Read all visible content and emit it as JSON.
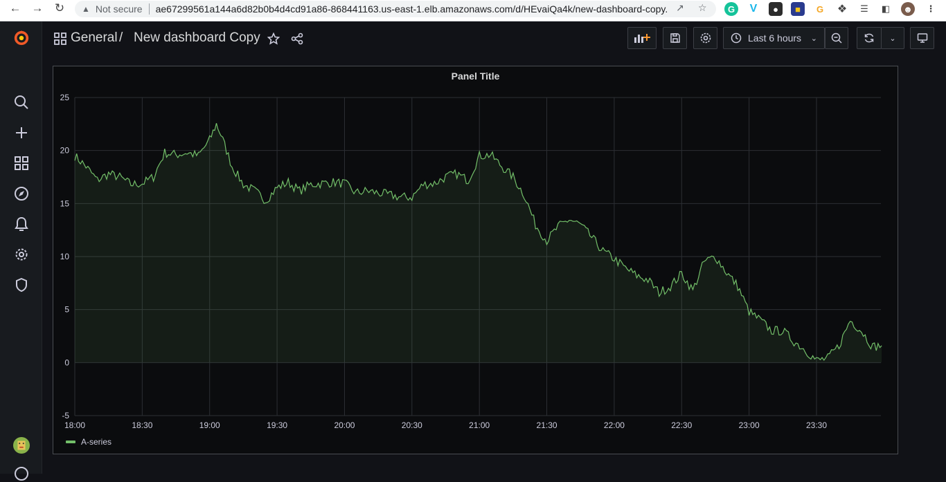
{
  "browser": {
    "security_label": "Not secure",
    "url": "ae67299561a144a6d82b0b4d4cd91a86-868441163.us-east-1.elb.amazonaws.com/d/HEvaiQa4k/new-dashboard-copy..."
  },
  "breadcrumb": {
    "folder": "General",
    "separator": "/",
    "dashboard": "New dashboard Copy"
  },
  "toolbar": {
    "time_range": "Last 6 hours"
  },
  "panel": {
    "title": "Panel Title",
    "legend": "A-series"
  },
  "colors": {
    "series_line": "#73bf69",
    "grafana_orange": "#f05a28"
  },
  "chart_data": {
    "type": "line",
    "title": "Panel Title",
    "x_ticks": [
      "18:00",
      "18:30",
      "19:00",
      "19:30",
      "20:00",
      "20:30",
      "21:00",
      "21:30",
      "22:00",
      "22:30",
      "23:00",
      "23:30"
    ],
    "y_ticks": [
      "-5",
      "0",
      "5",
      "10",
      "15",
      "20",
      "25"
    ],
    "ylim": [
      -5,
      25
    ],
    "xlim": [
      "18:00",
      "23:59"
    ],
    "grid": true,
    "legend_position": "bottom-left",
    "series": [
      {
        "name": "A-series",
        "x": [
          "18:00",
          "18:05",
          "18:10",
          "18:15",
          "18:20",
          "18:25",
          "18:30",
          "18:35",
          "18:40",
          "18:45",
          "18:50",
          "18:55",
          "19:00",
          "19:03",
          "19:05",
          "19:10",
          "19:15",
          "19:20",
          "19:25",
          "19:30",
          "19:35",
          "19:40",
          "19:45",
          "19:50",
          "19:55",
          "20:00",
          "20:05",
          "20:10",
          "20:15",
          "20:20",
          "20:25",
          "20:30",
          "20:35",
          "20:40",
          "20:45",
          "20:50",
          "20:55",
          "21:00",
          "21:05",
          "21:10",
          "21:15",
          "21:20",
          "21:25",
          "21:30",
          "21:35",
          "21:40",
          "21:45",
          "21:50",
          "21:55",
          "22:00",
          "22:05",
          "22:10",
          "22:15",
          "22:20",
          "22:25",
          "22:30",
          "22:35",
          "22:40",
          "22:45",
          "22:50",
          "22:55",
          "23:00",
          "23:05",
          "23:10",
          "23:15",
          "23:20",
          "23:25",
          "23:30",
          "23:35",
          "23:40",
          "23:45",
          "23:50",
          "23:55",
          "23:59"
        ],
        "values": [
          19.5,
          18.5,
          17.2,
          17.8,
          17.5,
          16.8,
          16.9,
          17.5,
          19.8,
          19.6,
          19.8,
          19.5,
          21.0,
          22.5,
          21.5,
          18.5,
          16.8,
          16.2,
          15.3,
          16.5,
          17.0,
          16.2,
          16.8,
          16.9,
          17.0,
          16.9,
          16.0,
          16.2,
          16.0,
          15.8,
          15.6,
          15.6,
          16.8,
          16.9,
          17.5,
          17.8,
          17.2,
          19.5,
          19.6,
          18.5,
          17.5,
          15.8,
          13.0,
          11.5,
          12.8,
          13.5,
          13.0,
          11.8,
          10.5,
          9.8,
          8.9,
          8.2,
          7.8,
          6.6,
          7.2,
          8.4,
          6.8,
          9.5,
          10.0,
          8.5,
          7.2,
          4.8,
          4.0,
          3.0,
          3.0,
          2.0,
          1.2,
          0.2,
          0.4,
          1.6,
          4.0,
          3.0,
          1.5,
          1.6
        ]
      }
    ]
  }
}
